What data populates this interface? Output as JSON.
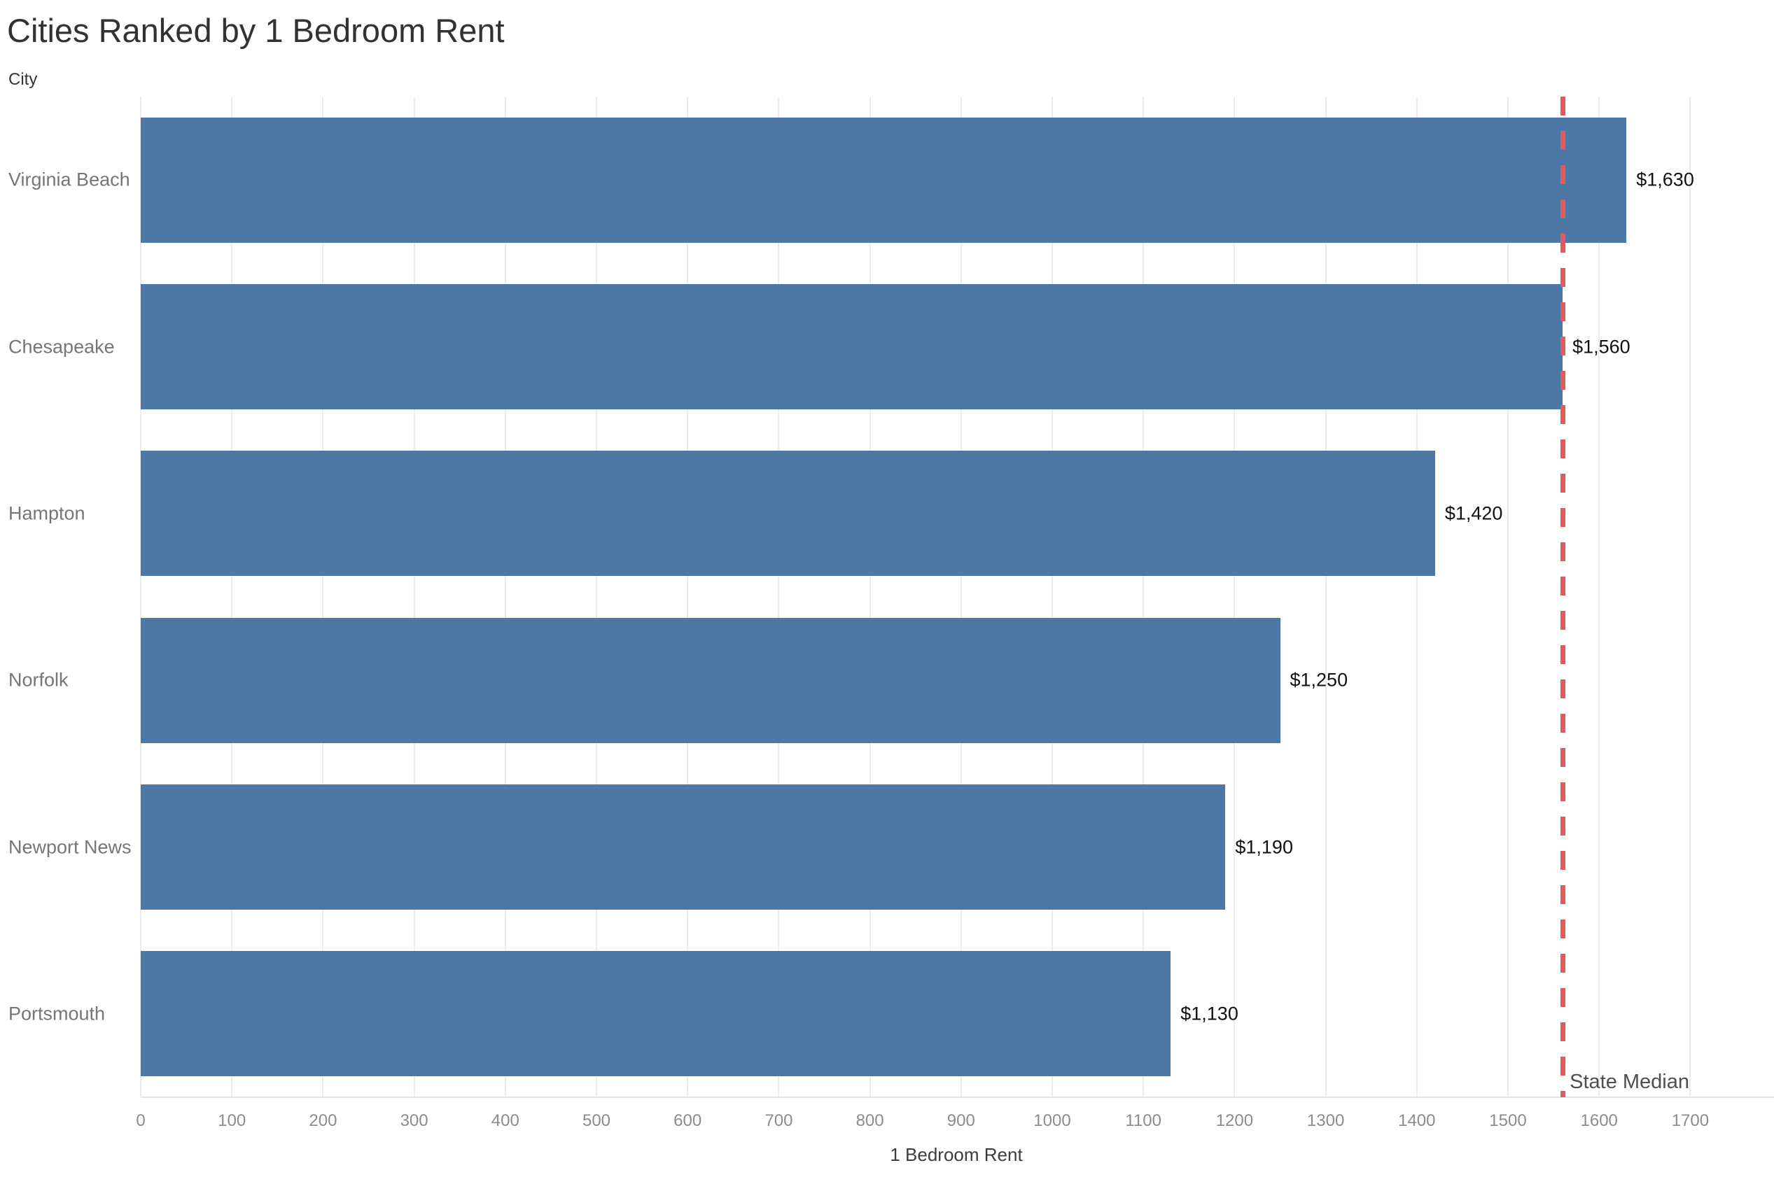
{
  "title": "Cities Ranked by 1 Bedroom Rent",
  "row_axis_header": "City",
  "chart_data": {
    "type": "bar",
    "orientation": "horizontal",
    "title": "Cities Ranked by 1 Bedroom Rent",
    "xlabel": "1 Bedroom Rent",
    "ylabel": "City",
    "categories": [
      "Virginia Beach",
      "Chesapeake",
      "Hampton",
      "Norfolk",
      "Newport News",
      "Portsmouth"
    ],
    "values": [
      1630,
      1560,
      1420,
      1250,
      1190,
      1130
    ],
    "value_labels": [
      "$1,630",
      "$1,560",
      "$1,420",
      "$1,250",
      "$1,190",
      "$1,130"
    ],
    "x_ticks": [
      0,
      100,
      200,
      300,
      400,
      500,
      600,
      700,
      800,
      900,
      1000,
      1100,
      1200,
      1300,
      1400,
      1500,
      1600,
      1700
    ],
    "xlim": [
      0,
      1790
    ],
    "grid": true,
    "legend": "none",
    "bar_color": "#4d77a5",
    "reference_line": {
      "label": "State Median",
      "value": 1560,
      "color": "#e25a5a",
      "style": "dashed"
    }
  }
}
